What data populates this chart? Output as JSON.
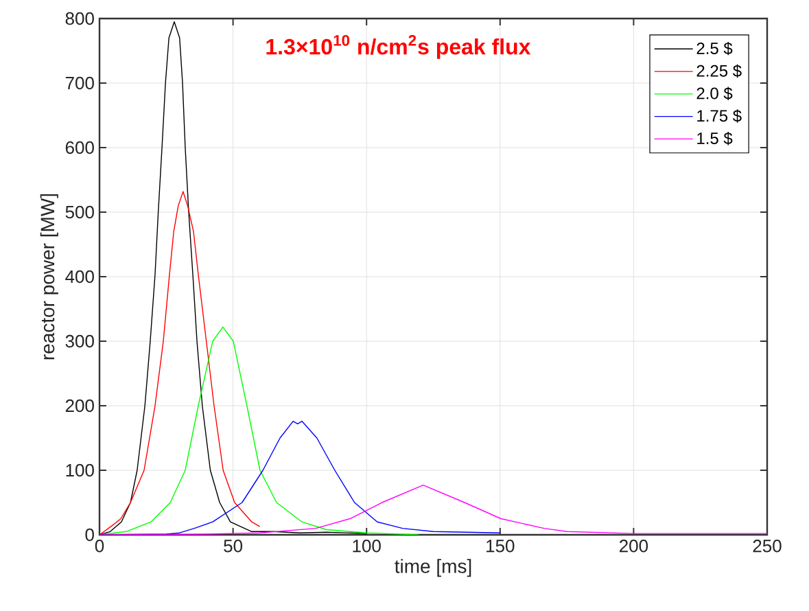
{
  "chart_data": {
    "type": "line",
    "xlabel": "time [ms]",
    "ylabel": "reactor power [MW]",
    "annotations": [
      "1.3×10$^{10}$ n/cm$^{2}$s peak flux"
    ],
    "xlim": [
      0,
      250
    ],
    "ylim": [
      0,
      800
    ],
    "xticks": [
      0,
      50,
      100,
      150,
      200,
      250
    ],
    "yticks": [
      0,
      100,
      200,
      300,
      400,
      500,
      600,
      700,
      800
    ],
    "grid": true,
    "legend": "top right",
    "marker": "none",
    "line_style": "solid",
    "series": [
      {
        "name": "2.5 $",
        "color": "#000000",
        "x": [
          0,
          4,
          8.2,
          11.6,
          14.1,
          17,
          19,
          20.8,
          22,
          23.4,
          24.7,
          26,
          28,
          30,
          31.1,
          32.1,
          33.4,
          35,
          36.5,
          38.5,
          41.5,
          45,
          49,
          57,
          65,
          75,
          85,
          100
        ],
        "values": [
          0,
          5,
          20,
          50,
          100,
          200,
          300,
          403,
          500,
          600,
          700,
          770,
          795,
          770,
          700,
          600,
          500,
          400,
          300,
          200,
          100,
          50,
          20,
          5,
          5,
          3,
          4,
          2
        ]
      },
      {
        "name": "2.25 $",
        "color": "#ff0000",
        "x": [
          0,
          5,
          8,
          11.6,
          16.7,
          20.8,
          23.9,
          26.2,
          27.8,
          29.5,
          31.3,
          33,
          35.2,
          37,
          40,
          42.9,
          46.3,
          50.6,
          57,
          60
        ],
        "values": [
          0,
          15,
          25,
          50,
          100,
          200,
          300,
          403,
          470,
          510,
          532,
          510,
          470,
          403,
          300,
          200,
          100,
          50,
          20,
          13
        ]
      },
      {
        "name": "2.0 $",
        "color": "#00ff00",
        "x": [
          0,
          10,
          19.3,
          26.5,
          32.1,
          37,
          42.4,
          46.2,
          50.1,
          55.2,
          60.1,
          66.3,
          75.8,
          85,
          100,
          119.5
        ],
        "values": [
          0,
          5,
          20,
          50,
          100,
          200,
          300,
          322,
          300,
          200,
          100,
          50,
          20,
          8,
          3,
          0
        ]
      },
      {
        "name": "1.75 $",
        "color": "#0000ff",
        "x": [
          0,
          25,
          30,
          35.5,
          42.4,
          53.4,
          61.2,
          67.6,
          72.5,
          74.2,
          75.8,
          81.4,
          88.1,
          95.5,
          104,
          113.5,
          125,
          150
        ],
        "values": [
          0,
          1,
          3,
          10,
          20,
          50,
          100,
          150,
          176,
          172,
          176,
          150,
          100,
          50,
          20,
          10,
          5,
          3
        ]
      },
      {
        "name": "1.5 $",
        "color": "#ff00ff",
        "x": [
          0,
          40,
          60,
          81,
          93.8,
          105.8,
          121.2,
          136.7,
          150.3,
          166.5,
          175,
          200,
          250
        ],
        "values": [
          0,
          1,
          3,
          10,
          25,
          50,
          77,
          50,
          25,
          10,
          5,
          2,
          2
        ]
      }
    ]
  }
}
